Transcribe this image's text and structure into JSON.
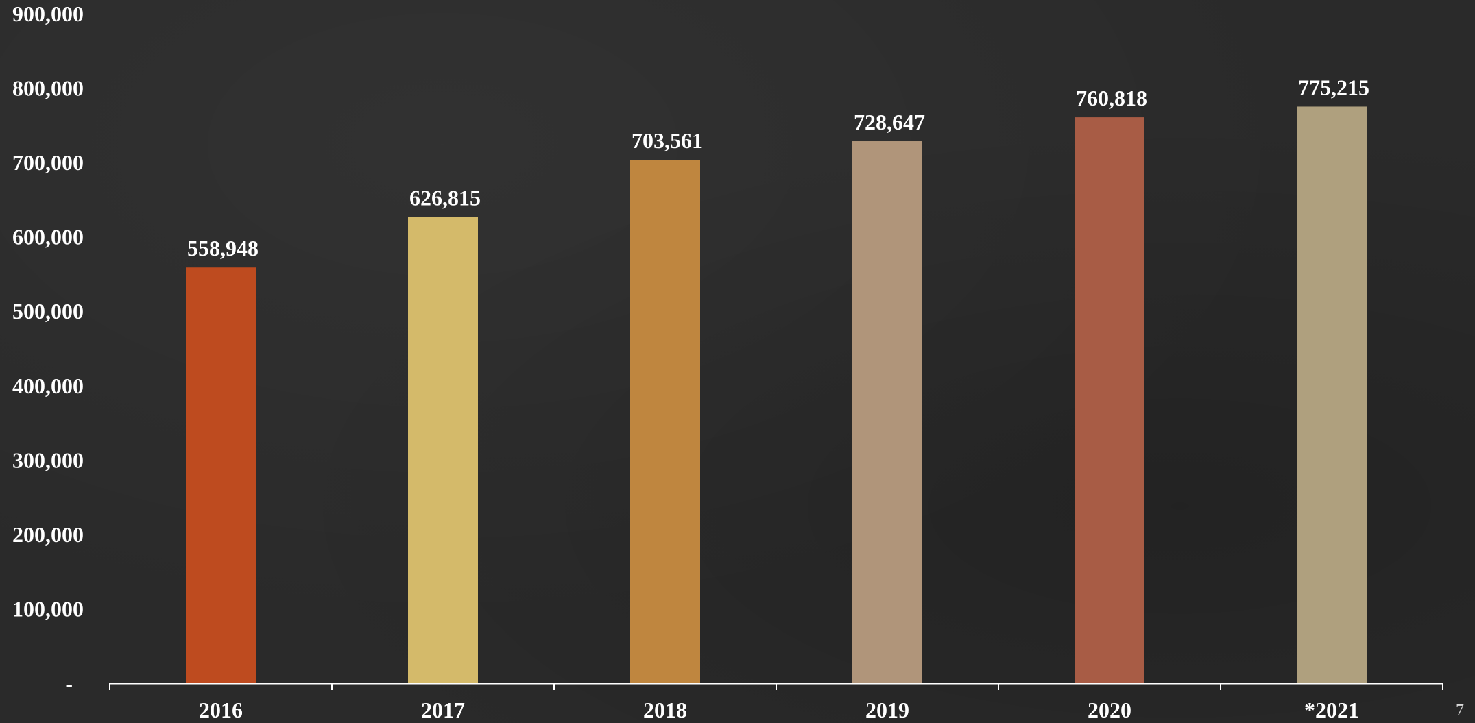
{
  "chart_data": {
    "type": "bar",
    "categories": [
      "2016",
      "2017",
      "2018",
      "2019",
      "2020",
      "*2021"
    ],
    "values": [
      558948,
      626815,
      703561,
      728647,
      760818,
      775215
    ],
    "value_labels": [
      "558,948",
      "626,815",
      "703,561",
      "728,647",
      "760,818",
      "775,215"
    ],
    "title": "",
    "xlabel": "",
    "ylabel": "",
    "ylim": [
      0,
      900000
    ],
    "yticks": [
      0,
      100000,
      200000,
      300000,
      400000,
      500000,
      600000,
      700000,
      800000,
      900000
    ],
    "ytick_labels": [
      "-",
      "100,000",
      "200,000",
      "300,000",
      "400,000",
      "500,000",
      "600,000",
      "700,000",
      "800,000",
      "900,000"
    ],
    "grid": false,
    "legend": "none",
    "bar_colors": [
      "#BE4B1F",
      "#D4BA6A",
      "#BF863F",
      "#B0957A",
      "#A85C45",
      "#AFA07E"
    ],
    "axis_color": "#ffffff",
    "text_color": "#ffffff",
    "background_color": "#2a2a2a"
  },
  "page": {
    "number": "7"
  }
}
